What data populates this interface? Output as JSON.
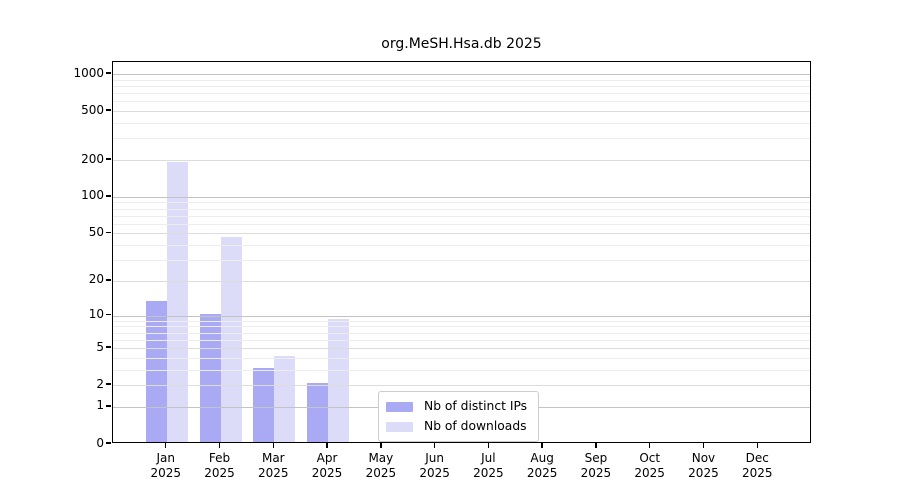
{
  "title": "org.MeSH.Hsa.db 2025",
  "chart_data": {
    "type": "bar",
    "title": "org.MeSH.Hsa.db 2025",
    "y_scale": "log1p",
    "grid": "on",
    "legend_position": "lower-center",
    "categories": [
      "Jan",
      "Feb",
      "Mar",
      "Apr",
      "May",
      "Jun",
      "Jul",
      "Aug",
      "Sep",
      "Oct",
      "Nov",
      "Dec"
    ],
    "year": "2025",
    "series": [
      {
        "name": "Nb of distinct IPs",
        "color": "#a9a9f4",
        "values": [
          13,
          10,
          3,
          2,
          0,
          0,
          0,
          0,
          0,
          0,
          0,
          0
        ]
      },
      {
        "name": "Nb of downloads",
        "color": "#dcdcf8",
        "values": [
          185,
          45,
          4,
          9,
          0,
          0,
          0,
          0,
          0,
          0,
          0,
          0
        ]
      }
    ],
    "y_ticks": [
      0,
      1,
      2,
      5,
      10,
      20,
      50,
      100,
      200,
      500,
      1000
    ],
    "y_minor_ticks": [
      3,
      4,
      6,
      7,
      8,
      9,
      30,
      40,
      60,
      70,
      80,
      90,
      300,
      400,
      600,
      700,
      800,
      900
    ],
    "ylim": [
      0,
      1250
    ]
  },
  "colors": {
    "bar_ips": "#a9a9f4",
    "bar_downloads": "#dcdcf8",
    "grid_decade": "#c3c3c3",
    "grid_major": "#dcdcdc",
    "grid_minor": "#ededed",
    "axis": "#000000",
    "background": "#ffffff",
    "legend_border": "#cccccc"
  }
}
